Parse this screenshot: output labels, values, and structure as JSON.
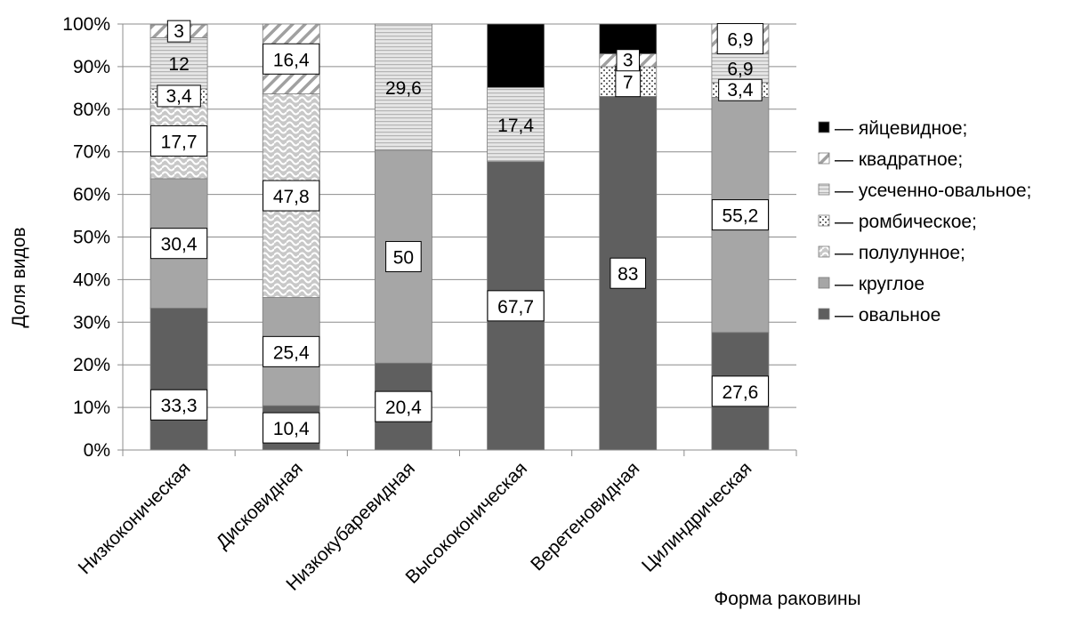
{
  "chart_data": {
    "type": "bar",
    "stacked": true,
    "title": "",
    "xlabel": "Форма раковины",
    "ylabel": "Доля видов",
    "ylim": [
      0,
      100
    ],
    "y_ticks": [
      "0%",
      "10%",
      "20%",
      "30%",
      "40%",
      "50%",
      "60%",
      "70%",
      "80%",
      "90%",
      "100%"
    ],
    "grid": "horizontal",
    "legend_position": "right",
    "categories": [
      "Низкоконическая",
      "Дисковидная",
      "Низкокубаревидная",
      "Высококоническая",
      "Веретеновидная",
      "Цилиндрическая"
    ],
    "series": [
      {
        "name": "— овальное",
        "color": "#5f5f5f",
        "pattern": "solid",
        "values": [
          33.3,
          10.4,
          20.4,
          67.7,
          83,
          27.6
        ],
        "labels": [
          "33,3",
          "10,4",
          "20,4",
          "67,7",
          "83",
          "27,6"
        ]
      },
      {
        "name": "— круглое",
        "color": "#a6a6a6",
        "pattern": "solid",
        "values": [
          30.4,
          25.4,
          50,
          0,
          0,
          55.2
        ],
        "labels": [
          "30,4",
          "25,4",
          "50",
          "",
          "",
          "55,2"
        ]
      },
      {
        "name": "— полулунное;",
        "color": "#c8c8c8",
        "pattern": "waves",
        "values": [
          17.7,
          47.8,
          0,
          0,
          0,
          0
        ],
        "labels": [
          "17,7",
          "47,8",
          "",
          "",
          "",
          ""
        ]
      },
      {
        "name": "— ромбическое;",
        "color": "#ffffff",
        "pattern": "dots",
        "values": [
          3.4,
          0,
          0,
          0,
          7,
          3.4
        ],
        "labels": [
          "3,4",
          "",
          "",
          "",
          "7",
          "3,4"
        ]
      },
      {
        "name": "— усеченно-овальное;",
        "color": "#d4d4d4",
        "pattern": "hlines",
        "values": [
          12,
          0,
          29.6,
          17.4,
          0,
          6.9
        ],
        "labels": [
          "12",
          "",
          "29,6",
          "17,4",
          "",
          "6,9"
        ]
      },
      {
        "name": "— квадратное;",
        "color": "#ffffff",
        "pattern": "diagonal",
        "values": [
          3,
          16.4,
          0,
          0,
          3,
          6.9
        ],
        "labels": [
          "3",
          "16,4",
          "",
          "",
          "3",
          "6,9"
        ]
      },
      {
        "name": "— яйцевидное;",
        "color": "#000000",
        "pattern": "solid",
        "values": [
          0,
          0,
          0,
          15.2,
          7,
          0
        ],
        "labels": [
          "",
          "",
          "",
          "15,2",
          "7",
          ""
        ]
      }
    ]
  }
}
